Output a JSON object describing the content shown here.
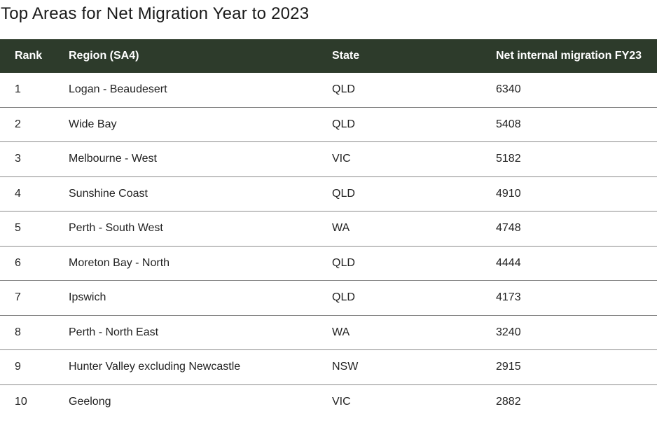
{
  "chart_data": {
    "type": "table",
    "title": "Top Areas for Net Migration Year to 2023",
    "columns": [
      "Rank",
      "Region (SA4)",
      "State",
      "Net internal migration FY23"
    ],
    "rows": [
      {
        "rank": "1",
        "region": "Logan - Beaudesert",
        "state": "QLD",
        "net": "6340"
      },
      {
        "rank": "2",
        "region": "Wide Bay",
        "state": "QLD",
        "net": "5408"
      },
      {
        "rank": "3",
        "region": "Melbourne - West",
        "state": "VIC",
        "net": "5182"
      },
      {
        "rank": "4",
        "region": "Sunshine Coast",
        "state": "QLD",
        "net": "4910"
      },
      {
        "rank": "5",
        "region": "Perth - South West",
        "state": "WA",
        "net": "4748"
      },
      {
        "rank": "6",
        "region": "Moreton Bay - North",
        "state": "QLD",
        "net": "4444"
      },
      {
        "rank": "7",
        "region": "Ipswich",
        "state": "QLD",
        "net": "4173"
      },
      {
        "rank": "8",
        "region": "Perth - North East",
        "state": "WA",
        "net": "3240"
      },
      {
        "rank": "9",
        "region": "Hunter Valley excluding Newcastle",
        "state": "NSW",
        "net": "2915"
      },
      {
        "rank": "10",
        "region": "Geelong",
        "state": "VIC",
        "net": "2882"
      }
    ]
  },
  "colors": {
    "header_bg": "#2d3b2b",
    "header_text": "#ffffff",
    "row_divider": "#8a8a8a"
  }
}
